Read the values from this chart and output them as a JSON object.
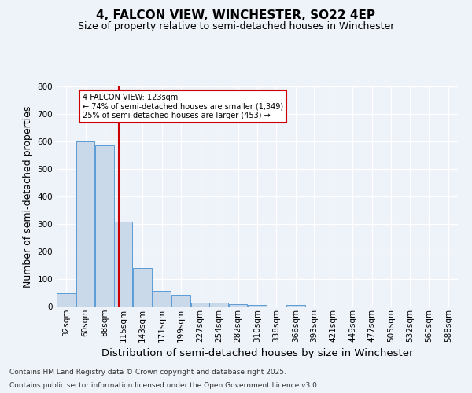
{
  "title": "4, FALCON VIEW, WINCHESTER, SO22 4EP",
  "subtitle": "Size of property relative to semi-detached houses in Winchester",
  "xlabel": "Distribution of semi-detached houses by size in Winchester",
  "ylabel": "Number of semi-detached properties",
  "footnote1": "Contains HM Land Registry data © Crown copyright and database right 2025.",
  "footnote2": "Contains public sector information licensed under the Open Government Licence v3.0.",
  "bin_labels": [
    "32sqm",
    "60sqm",
    "88sqm",
    "115sqm",
    "143sqm",
    "171sqm",
    "199sqm",
    "227sqm",
    "254sqm",
    "282sqm",
    "310sqm",
    "338sqm",
    "366sqm",
    "393sqm",
    "421sqm",
    "449sqm",
    "477sqm",
    "505sqm",
    "532sqm",
    "560sqm",
    "588sqm"
  ],
  "bin_edges": [
    32,
    60,
    88,
    115,
    143,
    171,
    199,
    227,
    254,
    282,
    310,
    338,
    366,
    393,
    421,
    449,
    477,
    505,
    532,
    560,
    588
  ],
  "bar_values": [
    50,
    600,
    585,
    310,
    140,
    57,
    42,
    15,
    13,
    9,
    5,
    0,
    7,
    0,
    0,
    0,
    0,
    0,
    0,
    0
  ],
  "bar_color": "#c9d9ea",
  "bar_edgecolor": "#5b9bd5",
  "property_size": 123,
  "redline_color": "#cc0000",
  "annotation_line1": "4 FALCON VIEW: 123sqm",
  "annotation_line2": "← 74% of semi-detached houses are smaller (1,349)",
  "annotation_line3": "25% of semi-detached houses are larger (453) →",
  "annotation_box_color": "#cc0000",
  "ylim": [
    0,
    800
  ],
  "yticks": [
    0,
    100,
    200,
    300,
    400,
    500,
    600,
    700,
    800
  ],
  "background_color": "#eef2f9",
  "grid_color": "#ffffff",
  "title_fontsize": 11,
  "subtitle_fontsize": 9,
  "axis_label_fontsize": 9,
  "tick_fontsize": 7.5,
  "footnote_fontsize": 6.5
}
